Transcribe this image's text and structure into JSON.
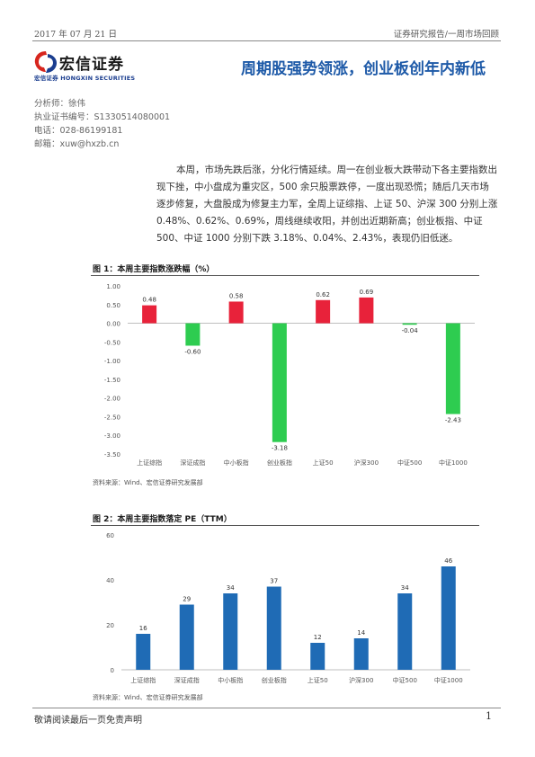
{
  "header": {
    "date": "2017 年 07 月 21 日",
    "report_type": "证券研究报告/一周市场回顾"
  },
  "logo": {
    "name_cn": "宏信证券",
    "name_en": "宏信证券 HONGXIN SECURITIES",
    "colors": {
      "red": "#d7261e",
      "blue": "#1a3d8f"
    }
  },
  "title": "周期股强势领涨，创业板创年内新低",
  "analyst": {
    "name": "分析师：徐伟",
    "license": "执业证书编号：S1330514080001",
    "phone": "电话：028-86199181",
    "email": "邮箱：xuw@hxzb.cn"
  },
  "intro": "本周，市场先跌后涨，分化行情延续。周一在创业板大跌带动下各主要指数出现下挫，中小盘成为重灾区，500 余只股票跌停，一度出现恐慌；随后几天市场逐步修复，大盘股成为修复主力军，全周上证综指、上证 50、沪深 300 分别上涨 0.48%、0.62%、0.69%，周线继续收阳，并创出近期新高；创业板指、中证 500、中证 1000 分别下跌 3.18%、0.04%、2.43%，表现仍旧低迷。",
  "figures": [
    {
      "title": "图 1：本周主要指数涨跌幅（%）",
      "source": "资料来源：Wind、宏信证券研究发展部"
    },
    {
      "title": "图 2：本周主要指数落定 PE（TTM）",
      "source": "资料来源：Wind、宏信证券研究发展部"
    }
  ],
  "chart_data": [
    {
      "type": "bar",
      "title": "图 1：本周主要指数涨跌幅（%）",
      "categories": [
        "上证综指",
        "深证成指",
        "中小板指",
        "创业板指",
        "上证50",
        "沪深300",
        "中证500",
        "中证1000"
      ],
      "values": [
        0.48,
        -0.6,
        0.58,
        -3.18,
        0.62,
        0.69,
        -0.04,
        -2.43
      ],
      "labels": [
        "0.48",
        "-0.60",
        "0.58",
        "-3.18",
        "0.62",
        "0.69",
        "-0.04",
        "-2.43"
      ],
      "ylim": [
        -3.5,
        1.0
      ],
      "yticks": [
        "1.00",
        "0.50",
        "0.00",
        "-0.50",
        "-1.00",
        "-1.50",
        "-2.00",
        "-2.50",
        "-3.00",
        "-3.50"
      ],
      "colors": {
        "positive": "#e8223a",
        "negative": "#2ecc50"
      },
      "grid": false
    },
    {
      "type": "bar",
      "title": "图 2：本周主要指数落定 PE（TTM）",
      "categories": [
        "上证综指",
        "深证成指",
        "中小板指",
        "创业板指",
        "上证50",
        "沪深300",
        "中证500",
        "中证1000"
      ],
      "values": [
        16,
        29,
        34,
        37,
        12,
        14,
        34,
        46
      ],
      "ylim": [
        0,
        60
      ],
      "yticks": [
        "60",
        "40",
        "20",
        "0"
      ],
      "colors": {
        "bar": "#1f6bb5"
      },
      "grid": false
    }
  ],
  "footer": {
    "disclaimer": "敬请阅读最后一页免责声明",
    "page": "1"
  }
}
